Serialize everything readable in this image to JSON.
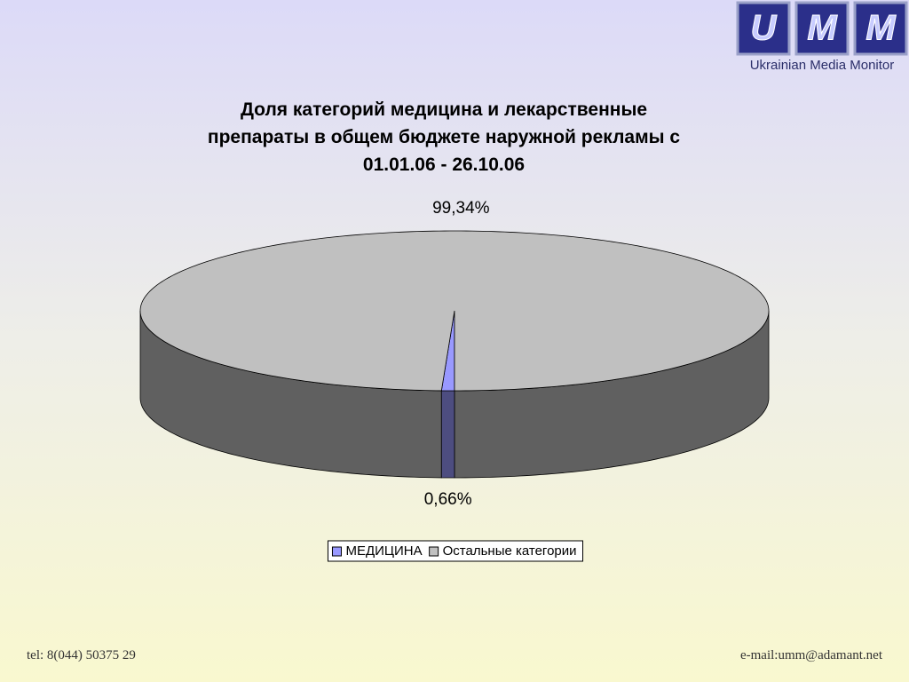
{
  "logo": {
    "letters": [
      "U",
      "M",
      "M"
    ],
    "caption": "Ukrainian Media Monitor"
  },
  "chart_data": {
    "type": "pie3d",
    "title": "Доля категорий медицина и лекарственные препараты в общем бюджете наружной рекламы с 01.01.06 - 26.10.06",
    "categories": [
      "МЕДИЦИНА",
      "Остальные категории"
    ],
    "values": [
      0.66,
      99.34
    ],
    "value_labels": [
      "0,66%",
      "99,34%"
    ],
    "colors": [
      "#9999ff",
      "#c0c0c0"
    ],
    "legend": "bottom"
  },
  "footer": {
    "phone": "tel: 8(044) 50375 29",
    "email": "e-mail:umm@adamant.net"
  }
}
